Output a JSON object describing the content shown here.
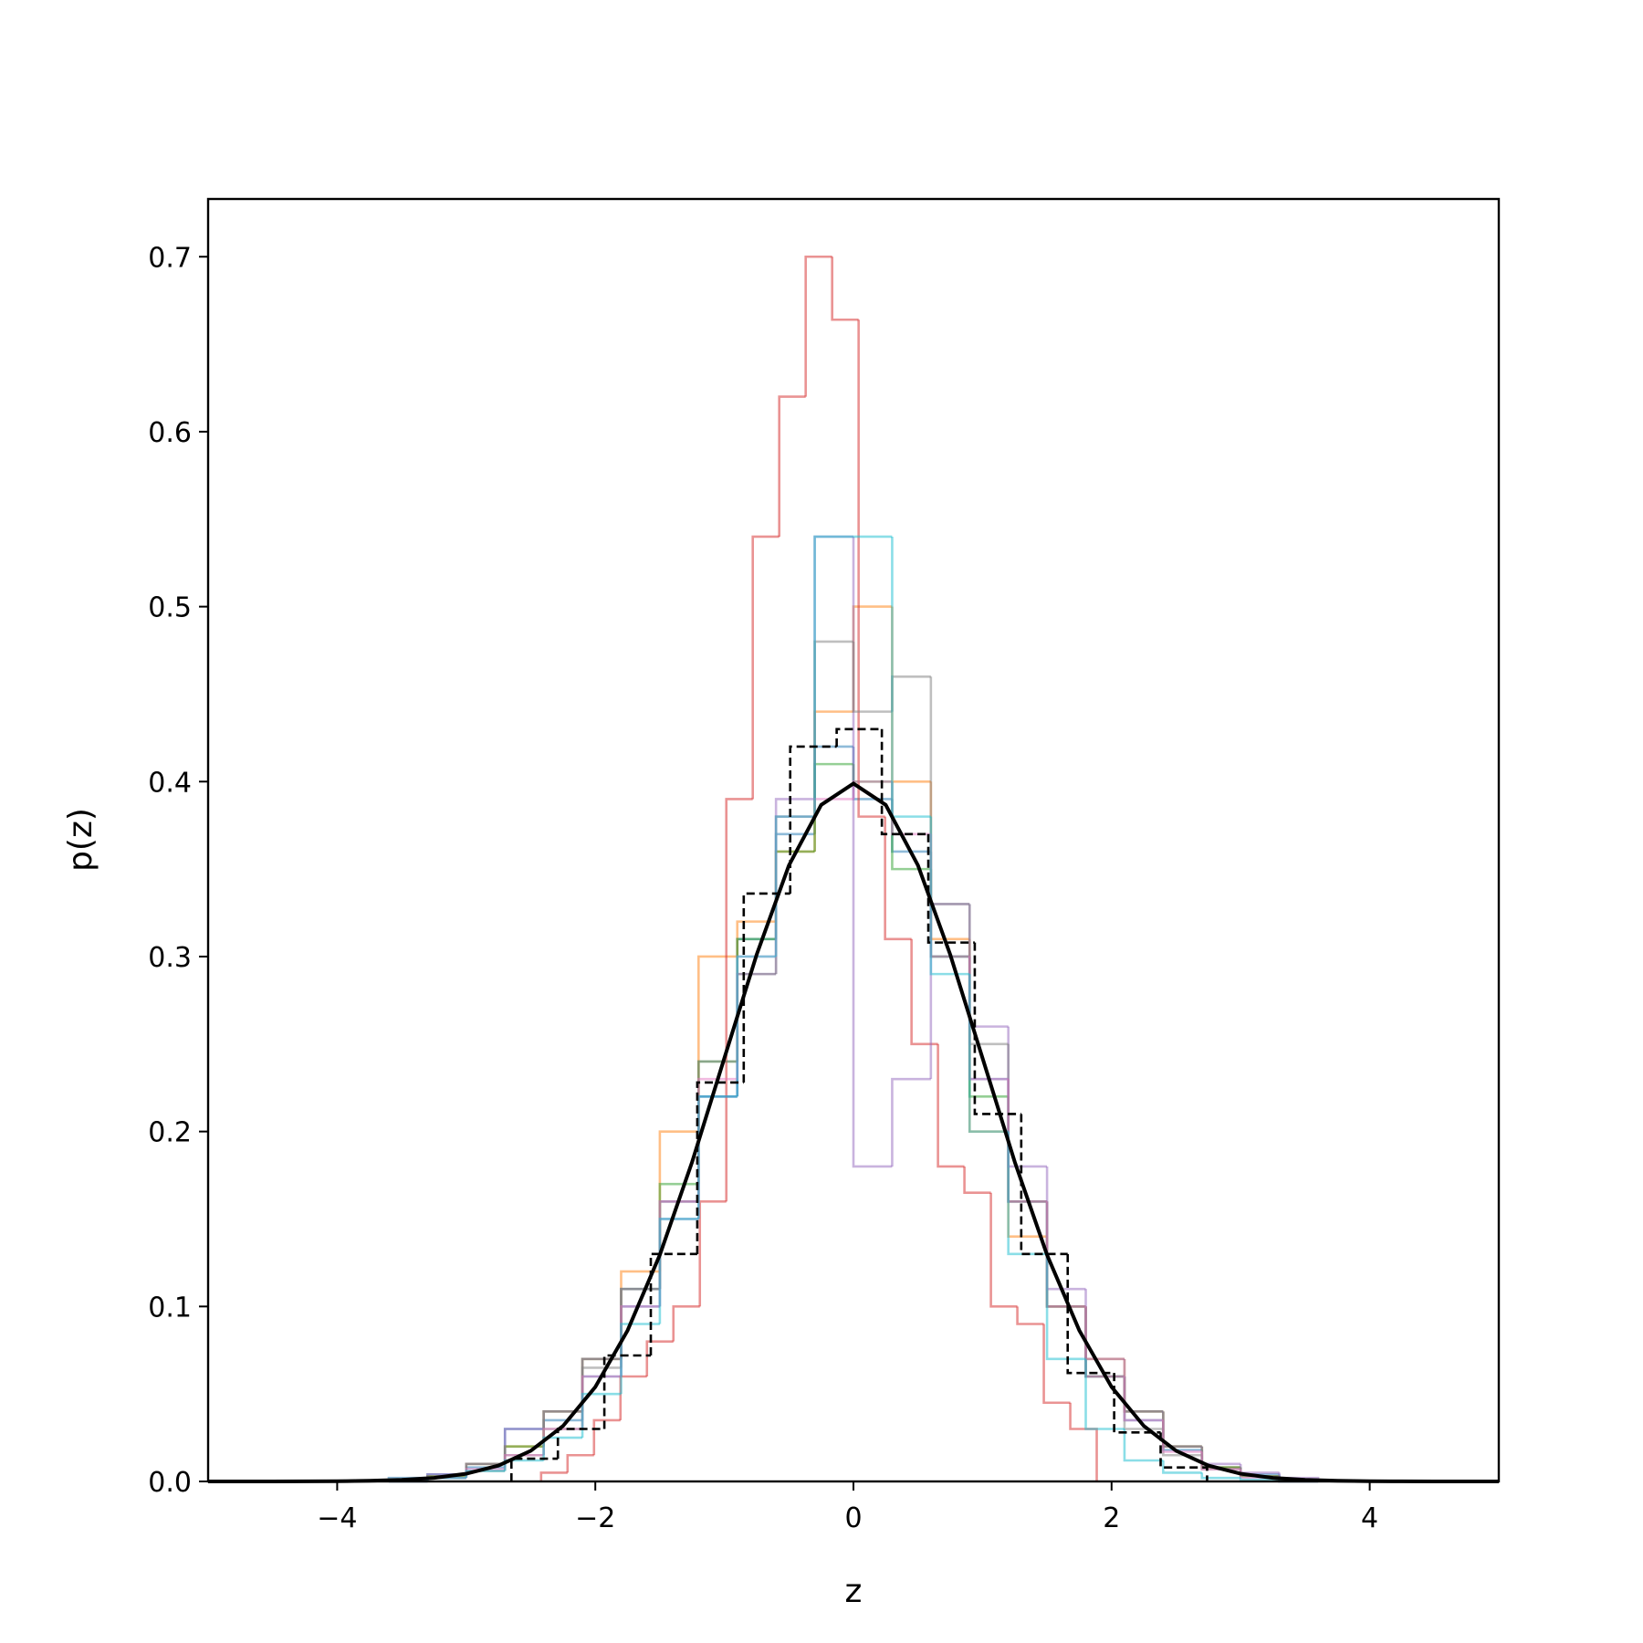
{
  "chart_data": {
    "type": "histogram",
    "xlabel": "z",
    "ylabel": "p(z)",
    "xlim": [
      -5,
      5
    ],
    "ylim": [
      0,
      0.733
    ],
    "xticks": [
      {
        "value": -4,
        "label": "−4"
      },
      {
        "value": -2,
        "label": "−2"
      },
      0,
      2,
      4
    ],
    "yticks": [
      {
        "value": 0,
        "label": "0.0"
      },
      0.1,
      0.2,
      0.3,
      0.4,
      0.5,
      0.6,
      0.7
    ],
    "series": [
      {
        "color": "#1f77b4",
        "bins": [
          -3.6,
          -3.3,
          -3.0,
          -2.7,
          -2.4,
          -2.1,
          -1.8,
          -1.5,
          -1.2,
          -0.9,
          -0.6,
          -0.3,
          0,
          0.3,
          0.6,
          0.9,
          1.2,
          1.5,
          1.8,
          2.1,
          2.4,
          2.7,
          3.0,
          3.3,
          3.6
        ],
        "values": [
          0.002,
          0.004,
          0.008,
          0.03,
          0.035,
          0.06,
          0.1,
          0.16,
          0.22,
          0.31,
          0.37,
          0.42,
          0.39,
          0.36,
          0.3,
          0.23,
          0.16,
          0.1,
          0.06,
          0.035,
          0.018,
          0.008,
          0.004,
          0.001
        ]
      },
      {
        "color": "#ff7f0e",
        "bins": [
          -3.6,
          -3.3,
          -3.0,
          -2.7,
          -2.4,
          -2.1,
          -1.8,
          -1.5,
          -1.2,
          -0.9,
          -0.6,
          -0.3,
          0,
          0.3,
          0.6,
          0.9,
          1.2,
          1.5,
          1.8,
          2.1,
          2.4,
          2.7,
          3.0,
          3.3,
          3.6
        ],
        "values": [
          0.001,
          0.003,
          0.01,
          0.02,
          0.04,
          0.07,
          0.12,
          0.2,
          0.3,
          0.32,
          0.36,
          0.44,
          0.5,
          0.4,
          0.31,
          0.2,
          0.14,
          0.1,
          0.07,
          0.04,
          0.02,
          0.008,
          0.003,
          0.001
        ]
      },
      {
        "color": "#2ca02c",
        "bins": [
          -3.6,
          -3.3,
          -3.0,
          -2.7,
          -2.4,
          -2.1,
          -1.8,
          -1.5,
          -1.2,
          -0.9,
          -0.6,
          -0.3,
          0,
          0.3,
          0.6,
          0.9,
          1.2,
          1.5,
          1.8,
          2.1,
          2.4,
          2.7,
          3.0,
          3.3,
          3.6
        ],
        "values": [
          0.001,
          0.003,
          0.01,
          0.02,
          0.04,
          0.07,
          0.11,
          0.17,
          0.24,
          0.31,
          0.36,
          0.41,
          0.4,
          0.35,
          0.3,
          0.22,
          0.16,
          0.1,
          0.06,
          0.04,
          0.02,
          0.008,
          0.003,
          0.001
        ]
      },
      {
        "color": "#d62728",
        "bins": [
          -2.42,
          -2.215,
          -2.01,
          -1.805,
          -1.6,
          -1.395,
          -1.19,
          -0.985,
          -0.78,
          -0.575,
          -0.37,
          -0.165,
          0.04,
          0.245,
          0.45,
          0.655,
          0.86,
          1.065,
          1.27,
          1.475,
          1.68,
          1.885
        ],
        "values": [
          0.005,
          0.015,
          0.035,
          0.06,
          0.08,
          0.1,
          0.16,
          0.39,
          0.54,
          0.62,
          0.7,
          0.664,
          0.38,
          0.31,
          0.25,
          0.18,
          0.165,
          0.1,
          0.09,
          0.045,
          0.03
        ]
      },
      {
        "color": "#9467bd",
        "bins": [
          -3.6,
          -3.3,
          -3.0,
          -2.7,
          -2.4,
          -2.1,
          -1.8,
          -1.5,
          -1.2,
          -0.9,
          -0.6,
          -0.3,
          0,
          0.3,
          0.6,
          0.9,
          1.2,
          1.5,
          1.8,
          2.1,
          2.4,
          2.7,
          3.0,
          3.3,
          3.6
        ],
        "values": [
          0.001,
          0.004,
          0.01,
          0.03,
          0.04,
          0.07,
          0.11,
          0.15,
          0.22,
          0.29,
          0.39,
          0.54,
          0.18,
          0.23,
          0.33,
          0.26,
          0.18,
          0.11,
          0.07,
          0.04,
          0.02,
          0.01,
          0.005,
          0.002
        ]
      },
      {
        "color": "#7f7f7f",
        "bins": [
          -3.6,
          -3.3,
          -3.0,
          -2.7,
          -2.4,
          -2.1,
          -1.8,
          -1.5,
          -1.2,
          -0.9,
          -0.6,
          -0.3,
          0,
          0.3,
          0.6,
          0.9,
          1.2,
          1.5,
          1.8,
          2.1,
          2.4,
          2.7,
          3.0,
          3.3,
          3.6
        ],
        "values": [
          0,
          0.002,
          0.006,
          0.015,
          0.03,
          0.065,
          0.11,
          0.16,
          0.24,
          0.29,
          0.38,
          0.48,
          0.44,
          0.46,
          0.33,
          0.25,
          0.16,
          0.1,
          0.06,
          0.03,
          0.015,
          0.007,
          0.003,
          0
        ]
      },
      {
        "color": "#e377c2",
        "bins": [
          -3.6,
          -3.3,
          -3.0,
          -2.7,
          -2.4,
          -2.1,
          -1.8,
          -1.5,
          -1.2,
          -0.9,
          -0.6,
          -0.3,
          0,
          0.3,
          0.6,
          0.9,
          1.2,
          1.5,
          1.8,
          2.1,
          2.4,
          2.7,
          3.0,
          3.3,
          3.6
        ],
        "values": [
          0,
          0.002,
          0.007,
          0.015,
          0.03,
          0.06,
          0.1,
          0.16,
          0.23,
          0.3,
          0.38,
          0.39,
          0.4,
          0.37,
          0.3,
          0.23,
          0.16,
          0.1,
          0.06,
          0.035,
          0.017,
          0.007,
          0.002,
          0
        ]
      },
      {
        "color": "#17becf",
        "bins": [
          -3.6,
          -3.3,
          -3.0,
          -2.7,
          -2.4,
          -2.1,
          -1.8,
          -1.5,
          -1.2,
          -0.9,
          -0.6,
          -0.3,
          0,
          0.3,
          0.6,
          0.9,
          1.2,
          1.5,
          1.8,
          2.1,
          2.4,
          2.7,
          3.0,
          3.3,
          3.6
        ],
        "values": [
          0,
          0.002,
          0.006,
          0.012,
          0.025,
          0.05,
          0.09,
          0.15,
          0.22,
          0.3,
          0.38,
          0.54,
          0.54,
          0.38,
          0.29,
          0.2,
          0.13,
          0.07,
          0.03,
          0.012,
          0.005,
          0.002,
          0.001,
          0
        ]
      },
      {
        "color": "#000000",
        "linestyle": "dashed",
        "bins": [
          -2.65,
          -2.29,
          -1.93,
          -1.57,
          -1.21,
          -0.85,
          -0.49,
          -0.13,
          0.22,
          0.58,
          0.94,
          1.3,
          1.66,
          2.02,
          2.38,
          2.74
        ],
        "values": [
          0.013,
          0.03,
          0.072,
          0.13,
          0.228,
          0.336,
          0.42,
          0.43,
          0.37,
          0.308,
          0.21,
          0.13,
          0.062,
          0.028,
          0.008
        ]
      }
    ],
    "curve": {
      "color": "#000000",
      "x": [
        -5,
        -4.75,
        -4.5,
        -4.25,
        -4,
        -3.75,
        -3.5,
        -3.25,
        -3,
        -2.75,
        -2.5,
        -2.25,
        -2,
        -1.75,
        -1.5,
        -1.25,
        -1,
        -0.75,
        -0.5,
        -0.25,
        0,
        0.25,
        0.5,
        0.75,
        1,
        1.25,
        1.5,
        1.75,
        2,
        2.25,
        2.5,
        2.75,
        3,
        3.25,
        3.5,
        3.75,
        4,
        4.25,
        4.5,
        4.75,
        5
      ],
      "values": [
        1.5e-06,
        5e-06,
        1.6e-05,
        5e-05,
        0.0001,
        0.0004,
        0.0009,
        0.002,
        0.0044,
        0.0091,
        0.0175,
        0.0317,
        0.054,
        0.0863,
        0.1295,
        0.1826,
        0.242,
        0.3011,
        0.3521,
        0.3867,
        0.3989,
        0.3867,
        0.3521,
        0.3011,
        0.242,
        0.1826,
        0.1295,
        0.0863,
        0.054,
        0.0317,
        0.0175,
        0.0091,
        0.0044,
        0.002,
        0.0009,
        0.0004,
        0.0001,
        5e-05,
        1.6e-05,
        5e-06,
        1.5e-06
      ]
    }
  }
}
